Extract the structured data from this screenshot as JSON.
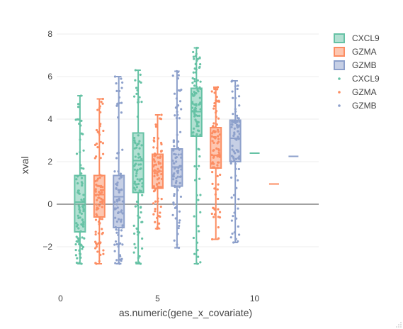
{
  "chart_data": {
    "type": "box",
    "xlabel": "as.numeric(gene_x_covariate)",
    "ylabel": "xval",
    "xlim": [
      -0.2,
      13.3
    ],
    "ylim": [
      -3.4,
      8.6
    ],
    "x_ticks": [
      0,
      5,
      10
    ],
    "y_ticks": [
      -2,
      0,
      2,
      4,
      6,
      8
    ],
    "grid": "horizontal",
    "zero_line": true,
    "legend_position": "top-right",
    "legend": [
      {
        "label": "CXCL9",
        "kind": "box",
        "series": "CXCL9"
      },
      {
        "label": "GZMA",
        "kind": "box",
        "series": "GZMA"
      },
      {
        "label": "GZMB",
        "kind": "box",
        "series": "GZMB"
      },
      {
        "label": "CXCL9",
        "kind": "points",
        "series": "CXCL9"
      },
      {
        "label": "GZMA",
        "kind": "points",
        "series": "GZMA"
      },
      {
        "label": "GZMB",
        "kind": "points",
        "series": "GZMB"
      }
    ],
    "series": [
      {
        "name": "CXCL9",
        "color": "#66c2a5",
        "boxes": [
          {
            "x": 1,
            "min": -2.8,
            "q1": -1.3,
            "median": 0.1,
            "q3": 1.35,
            "max": 5.1,
            "n": 90
          },
          {
            "x": 4,
            "min": -2.8,
            "q1": 0.55,
            "median": 2.05,
            "q3": 3.35,
            "max": 6.3,
            "n": 90
          },
          {
            "x": 7,
            "min": -2.8,
            "q1": 3.2,
            "median": 4.35,
            "q3": 5.45,
            "max": 7.35,
            "n": 100
          },
          {
            "x": 10,
            "min": 2.4,
            "q1": 2.4,
            "median": 2.4,
            "q3": 2.4,
            "max": 2.4,
            "n": 1
          }
        ]
      },
      {
        "name": "GZMA",
        "color": "#fc8d62",
        "boxes": [
          {
            "x": 2,
            "min": -2.8,
            "q1": -0.6,
            "median": 0.45,
            "q3": 1.35,
            "max": 4.95,
            "n": 90
          },
          {
            "x": 5,
            "min": -1.15,
            "q1": 0.75,
            "median": 1.55,
            "q3": 2.35,
            "max": 4.2,
            "n": 80
          },
          {
            "x": 8,
            "min": -1.65,
            "q1": 1.7,
            "median": 2.3,
            "q3": 3.6,
            "max": 5.5,
            "n": 90
          },
          {
            "x": 11,
            "min": 0.95,
            "q1": 0.95,
            "median": 0.95,
            "q3": 0.95,
            "max": 0.95,
            "n": 1
          }
        ]
      },
      {
        "name": "GZMB",
        "color": "#8da0cb",
        "boxes": [
          {
            "x": 3,
            "min": -2.8,
            "q1": -1.1,
            "median": 0.35,
            "q3": 1.35,
            "max": 6.0,
            "n": 85
          },
          {
            "x": 6,
            "min": -2.05,
            "q1": 0.85,
            "median": 1.75,
            "q3": 2.6,
            "max": 6.25,
            "n": 85
          },
          {
            "x": 9,
            "min": -1.8,
            "q1": 2.0,
            "median": 3.1,
            "q3": 3.95,
            "max": 5.8,
            "n": 85
          },
          {
            "x": 12,
            "min": 2.25,
            "q1": 2.25,
            "median": 2.25,
            "q3": 2.25,
            "max": 2.25,
            "n": 1
          }
        ]
      }
    ]
  }
}
